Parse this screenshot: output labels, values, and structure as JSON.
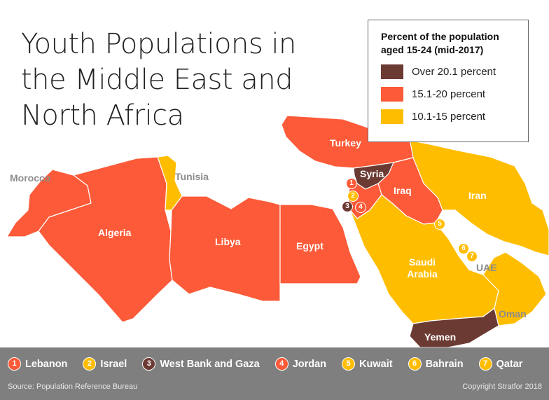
{
  "title": "Youth Populations in the Middle East and North Africa",
  "colors": {
    "over20": "#6b3a32",
    "range15_20": "#fc5a38",
    "range10_15": "#ffbd00",
    "marker_lebanon": "#fc5a38",
    "marker_israel": "#ffbd00",
    "marker_westbank": "#6b3a32",
    "marker_jordan": "#fc5a38",
    "marker_kuwait": "#ffbd00",
    "marker_bahrain": "#ffbd00",
    "marker_qatar": "#ffbd00"
  },
  "legend": {
    "title": "Percent of the population aged 15-24 (mid-2017)",
    "items": [
      {
        "label": "Over 20.1 percent",
        "color": "#6b3a32"
      },
      {
        "label": "15.1-20 percent",
        "color": "#fc5a38"
      },
      {
        "label": "10.1-15 percent",
        "color": "#ffbd00"
      }
    ]
  },
  "countries": {
    "turkey": {
      "label": "Turkey",
      "category": "15.1-20 percent"
    },
    "syria": {
      "label": "Syria",
      "category": "Over 20.1 percent"
    },
    "iraq": {
      "label": "Iraq",
      "category": "15.1-20 percent"
    },
    "iran": {
      "label": "Iran",
      "category": "10.1-15 percent"
    },
    "morocco": {
      "label": "Morocco",
      "category": "15.1-20 percent"
    },
    "tunisia": {
      "label": "Tunisia",
      "category": "10.1-15 percent"
    },
    "algeria": {
      "label": "Algeria",
      "category": "15.1-20 percent"
    },
    "libya": {
      "label": "Libya",
      "category": "15.1-20 percent"
    },
    "egypt": {
      "label": "Egypt",
      "category": "15.1-20 percent"
    },
    "saudi_arabia": {
      "label": "Saudi Arabia",
      "category": "10.1-15 percent"
    },
    "uae": {
      "label": "UAE",
      "category": "10.1-15 percent"
    },
    "oman": {
      "label": "Oman",
      "category": "10.1-15 percent"
    },
    "yemen": {
      "label": "Yemen",
      "category": "Over 20.1 percent"
    }
  },
  "key": [
    {
      "num": "1",
      "label": "Lebanon",
      "color": "#fc5a38"
    },
    {
      "num": "2",
      "label": "Israel",
      "color": "#ffbd00"
    },
    {
      "num": "3",
      "label": "West Bank and Gaza",
      "color": "#6b3a32"
    },
    {
      "num": "4",
      "label": "Jordan",
      "color": "#fc5a38"
    },
    {
      "num": "5",
      "label": "Kuwait",
      "color": "#ffbd00"
    },
    {
      "num": "6",
      "label": "Bahrain",
      "color": "#ffbd00"
    },
    {
      "num": "7",
      "label": "Qatar",
      "color": "#ffbd00"
    }
  ],
  "footer": {
    "source": "Source: Population Reference Bureau",
    "copyright": "Copyright Stratfor 2018"
  }
}
